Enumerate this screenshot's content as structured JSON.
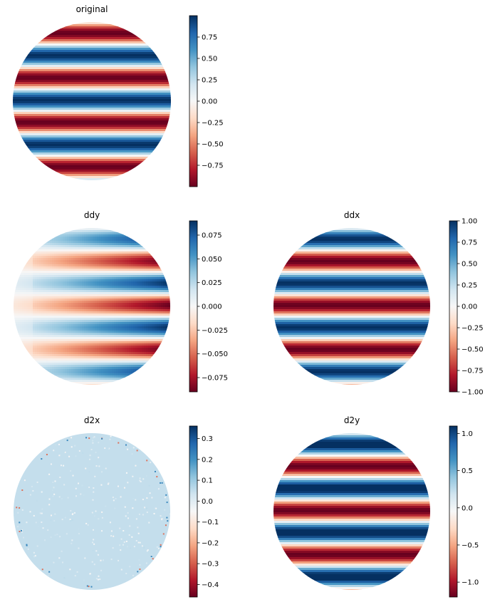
{
  "chart_data": [
    {
      "type": "heatmap",
      "title": "original",
      "pattern": "horizontal-bands",
      "colormap": "RdBu",
      "vrange": [
        -1.0,
        1.0
      ],
      "colorbar_ticks": [
        0.75,
        0.5,
        0.25,
        0.0,
        -0.25,
        -0.5,
        -0.75
      ],
      "colorbar_tick_labels": [
        "0.75",
        "0.50",
        "0.25",
        "0.00",
        "−0.25",
        "−0.50",
        "−0.75"
      ]
    },
    {
      "type": "heatmap",
      "title": "ddy",
      "pattern": "bands-growing-right",
      "colormap": "RdBu",
      "vrange": [
        -0.09,
        0.09
      ],
      "colorbar_ticks": [
        0.075,
        0.05,
        0.025,
        0.0,
        -0.025,
        -0.05,
        -0.075
      ],
      "colorbar_tick_labels": [
        "0.075",
        "0.050",
        "0.025",
        "0.000",
        "−0.025",
        "−0.050",
        "−0.075"
      ]
    },
    {
      "type": "heatmap",
      "title": "ddx",
      "pattern": "horizontal-bands",
      "colormap": "RdBu",
      "vrange": [
        -1.0,
        1.0
      ],
      "colorbar_ticks": [
        1.0,
        0.75,
        0.5,
        0.25,
        0.0,
        -0.25,
        -0.5,
        -0.75,
        -1.0
      ],
      "colorbar_tick_labels": [
        "1.00",
        "0.75",
        "0.50",
        "0.25",
        "0.00",
        "−0.25",
        "−0.50",
        "−0.75",
        "−1.00"
      ]
    },
    {
      "type": "heatmap",
      "title": "d2x",
      "pattern": "near-zero-noise",
      "colormap": "RdBu",
      "vrange": [
        -0.46,
        0.36
      ],
      "colorbar_ticks": [
        0.3,
        0.2,
        0.1,
        0.0,
        -0.1,
        -0.2,
        -0.3,
        -0.4
      ],
      "colorbar_tick_labels": [
        "0.3",
        "0.2",
        "0.1",
        "0.0",
        "−0.1",
        "−0.2",
        "−0.3",
        "−0.4"
      ]
    },
    {
      "type": "heatmap",
      "title": "d2y",
      "pattern": "horizontal-bands",
      "colormap": "RdBu",
      "vrange": [
        -1.2,
        1.1
      ],
      "colorbar_ticks": [
        1.0,
        0.5,
        0.0,
        -0.5,
        -1.0
      ],
      "colorbar_tick_labels": [
        "1.0",
        "0.5",
        "0.0",
        "−0.5",
        "−1.0"
      ]
    }
  ]
}
